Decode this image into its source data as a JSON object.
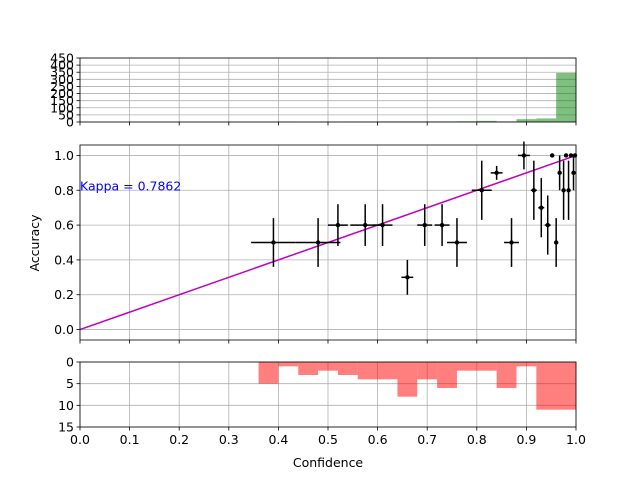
{
  "chart_data": [
    {
      "panel": "top-histogram",
      "type": "bar",
      "color": "#008000",
      "ylim": [
        0,
        450
      ],
      "yticks": [
        0,
        50,
        100,
        150,
        200,
        250,
        300,
        350,
        400,
        450
      ],
      "bins": [
        {
          "x0": 0.4,
          "x1": 0.44,
          "value": 2
        },
        {
          "x0": 0.48,
          "x1": 0.52,
          "value": 2
        },
        {
          "x0": 0.52,
          "x1": 0.56,
          "value": 3
        },
        {
          "x0": 0.56,
          "x1": 0.6,
          "value": 3
        },
        {
          "x0": 0.6,
          "x1": 0.64,
          "value": 4
        },
        {
          "x0": 0.64,
          "x1": 0.68,
          "value": 4
        },
        {
          "x0": 0.68,
          "x1": 0.72,
          "value": 4
        },
        {
          "x0": 0.72,
          "x1": 0.76,
          "value": 4
        },
        {
          "x0": 0.76,
          "x1": 0.8,
          "value": 5
        },
        {
          "x0": 0.8,
          "x1": 0.84,
          "value": 8
        },
        {
          "x0": 0.84,
          "x1": 0.88,
          "value": 4
        },
        {
          "x0": 0.88,
          "x1": 0.92,
          "value": 20
        },
        {
          "x0": 0.92,
          "x1": 0.96,
          "value": 25
        },
        {
          "x0": 0.96,
          "x1": 1.0,
          "value": 345
        }
      ]
    },
    {
      "panel": "reliability",
      "type": "scatter",
      "ylabel": "Accuracy",
      "xlim": [
        0,
        1
      ],
      "ylim": [
        -0.06,
        1.06
      ],
      "yticks": [
        "0.0",
        "0.2",
        "0.4",
        "0.6",
        "0.8",
        "1.0"
      ],
      "annotation": "Kappa = 0.7862",
      "annotation_color": "#0000ff",
      "diagonal_color": "#bf00bf",
      "points": [
        {
          "x": 0.39,
          "y": 0.5,
          "xerr": 0.045,
          "yerr": 0.14
        },
        {
          "x": 0.48,
          "y": 0.5,
          "xerr": 0.045,
          "yerr": 0.14
        },
        {
          "x": 0.52,
          "y": 0.6,
          "xerr": 0.02,
          "yerr": 0.12
        },
        {
          "x": 0.575,
          "y": 0.6,
          "xerr": 0.03,
          "yerr": 0.12
        },
        {
          "x": 0.61,
          "y": 0.6,
          "xerr": 0.02,
          "yerr": 0.12
        },
        {
          "x": 0.66,
          "y": 0.3,
          "xerr": 0.012,
          "yerr": 0.1
        },
        {
          "x": 0.695,
          "y": 0.6,
          "xerr": 0.015,
          "yerr": 0.12
        },
        {
          "x": 0.73,
          "y": 0.6,
          "xerr": 0.015,
          "yerr": 0.12
        },
        {
          "x": 0.76,
          "y": 0.5,
          "xerr": 0.02,
          "yerr": 0.14
        },
        {
          "x": 0.81,
          "y": 0.8,
          "xerr": 0.02,
          "yerr": 0.17
        },
        {
          "x": 0.84,
          "y": 0.9,
          "xerr": 0.012,
          "yerr": 0.04
        },
        {
          "x": 0.87,
          "y": 0.5,
          "xerr": 0.015,
          "yerr": 0.14
        },
        {
          "x": 0.895,
          "y": 1.0,
          "xerr": 0.012,
          "yerr": 0.08
        },
        {
          "x": 0.915,
          "y": 0.8,
          "xerr": 0.006,
          "yerr": 0.17
        },
        {
          "x": 0.93,
          "y": 0.7,
          "xerr": 0.006,
          "yerr": 0.17
        },
        {
          "x": 0.943,
          "y": 0.6,
          "xerr": 0.006,
          "yerr": 0.17
        },
        {
          "x": 0.952,
          "y": 1.0,
          "xerr": 0.004,
          "yerr": 0.01
        },
        {
          "x": 0.96,
          "y": 0.5,
          "xerr": 0.004,
          "yerr": 0.14
        },
        {
          "x": 0.967,
          "y": 0.9,
          "xerr": 0.004,
          "yerr": 0.1
        },
        {
          "x": 0.975,
          "y": 0.8,
          "xerr": 0.004,
          "yerr": 0.17
        },
        {
          "x": 0.98,
          "y": 1.0,
          "xerr": 0.004,
          "yerr": 0.01
        },
        {
          "x": 0.985,
          "y": 0.8,
          "xerr": 0.004,
          "yerr": 0.17
        },
        {
          "x": 0.99,
          "y": 1.0,
          "xerr": 0.004,
          "yerr": 0.01
        },
        {
          "x": 0.995,
          "y": 0.9,
          "xerr": 0.004,
          "yerr": 0.1
        },
        {
          "x": 0.998,
          "y": 1.0,
          "xerr": 0.004,
          "yerr": 0.01
        }
      ]
    },
    {
      "panel": "bottom-histogram",
      "type": "bar",
      "color": "#ff0000",
      "inverted_y": true,
      "xlabel": "Confidence",
      "xlim": [
        0,
        1
      ],
      "xticks": [
        "0.0",
        "0.1",
        "0.2",
        "0.3",
        "0.4",
        "0.5",
        "0.6",
        "0.7",
        "0.8",
        "0.9",
        "1.0"
      ],
      "ylim": [
        0,
        15
      ],
      "yticks": [
        0,
        5,
        10,
        15
      ],
      "bins": [
        {
          "x0": 0.36,
          "x1": 0.4,
          "value": 5
        },
        {
          "x0": 0.4,
          "x1": 0.44,
          "value": 1
        },
        {
          "x0": 0.44,
          "x1": 0.48,
          "value": 3
        },
        {
          "x0": 0.48,
          "x1": 0.52,
          "value": 2
        },
        {
          "x0": 0.52,
          "x1": 0.56,
          "value": 3
        },
        {
          "x0": 0.56,
          "x1": 0.6,
          "value": 4
        },
        {
          "x0": 0.6,
          "x1": 0.64,
          "value": 4
        },
        {
          "x0": 0.64,
          "x1": 0.68,
          "value": 8
        },
        {
          "x0": 0.68,
          "x1": 0.72,
          "value": 4
        },
        {
          "x0": 0.72,
          "x1": 0.76,
          "value": 6
        },
        {
          "x0": 0.76,
          "x1": 0.8,
          "value": 2
        },
        {
          "x0": 0.8,
          "x1": 0.84,
          "value": 2
        },
        {
          "x0": 0.84,
          "x1": 0.88,
          "value": 6
        },
        {
          "x0": 0.88,
          "x1": 0.92,
          "value": 1
        },
        {
          "x0": 0.92,
          "x1": 1.0,
          "value": 11
        }
      ]
    }
  ]
}
